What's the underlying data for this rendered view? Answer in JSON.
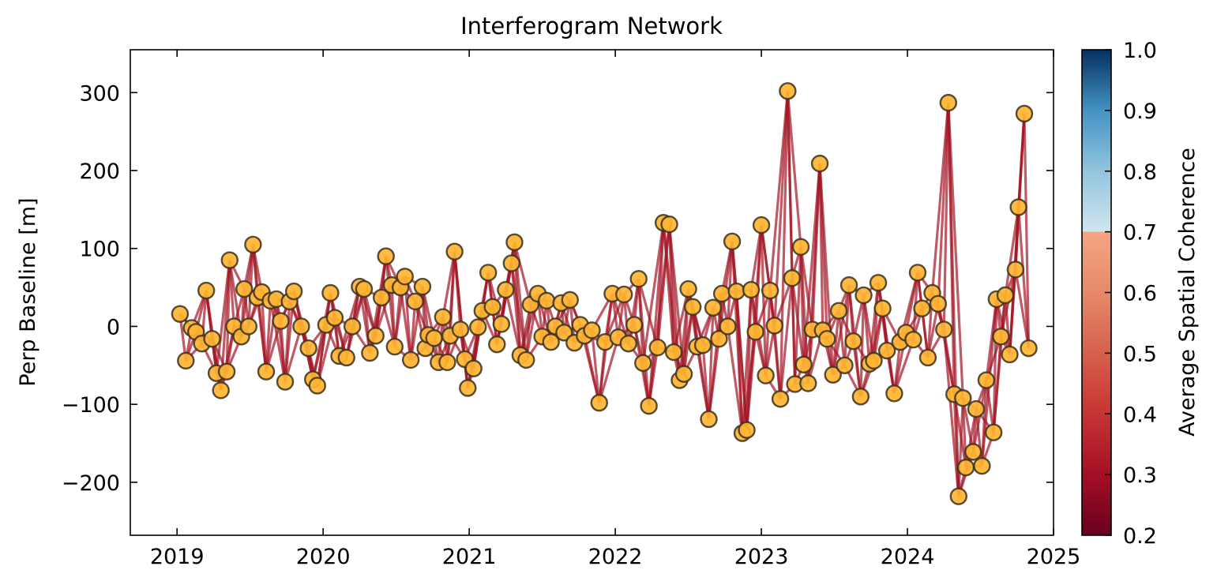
{
  "chart_data": {
    "type": "network",
    "title": "Interferogram Network",
    "ylabel": "Perp Baseline [m]",
    "xlabel": "",
    "xlim": [
      2018.68,
      2024.9
    ],
    "ylim": [
      -268,
      355
    ],
    "xticks": [
      2019,
      2020,
      2021,
      2022,
      2023,
      2024,
      2025
    ],
    "xtick_labels": [
      "2019",
      "2020",
      "2021",
      "2022",
      "2023",
      "2024",
      "2025"
    ],
    "yticks": [
      -200,
      -100,
      0,
      100,
      200,
      300
    ],
    "ytick_labels": [
      "−200",
      "−100",
      "0",
      "100",
      "200",
      "300"
    ],
    "grid": false,
    "colorbar": {
      "label": "Average Spatial Coherence",
      "range": [
        0.2,
        1.0
      ],
      "ticks": [
        0.2,
        0.3,
        0.4,
        0.5,
        0.6,
        0.7,
        0.8,
        0.9,
        1.0
      ],
      "tick_labels": [
        "0.2",
        "0.3",
        "0.4",
        "0.5",
        "0.6",
        "0.7",
        "0.8",
        "0.9",
        "1.0"
      ],
      "colormap": "RdBu",
      "cmap_stops": [
        {
          "v": 0.2,
          "color": "#67001f"
        },
        {
          "v": 0.3,
          "color": "#a50f25"
        },
        {
          "v": 0.4,
          "color": "#c73433"
        },
        {
          "v": 0.5,
          "color": "#d6604d"
        },
        {
          "v": 0.6,
          "color": "#e58a69"
        },
        {
          "v": 0.7,
          "color": "#f4a582"
        },
        {
          "v": 0.7001,
          "color": "#d1e5f0"
        },
        {
          "v": 0.8,
          "color": "#92c5de"
        },
        {
          "v": 0.9,
          "color": "#4393c3"
        },
        {
          "v": 1.0,
          "color": "#053061"
        }
      ]
    },
    "node_color": "#ffb531",
    "node_edge_color": "#3a3020",
    "edge_color": "#a31525",
    "edge_coherence": 0.3,
    "acquisitions": [
      {
        "t": 2019.02,
        "bperp": 16
      },
      {
        "t": 2019.06,
        "bperp": -44
      },
      {
        "t": 2019.1,
        "bperp": -2
      },
      {
        "t": 2019.13,
        "bperp": -7
      },
      {
        "t": 2019.17,
        "bperp": -22
      },
      {
        "t": 2019.2,
        "bperp": 46
      },
      {
        "t": 2019.24,
        "bperp": -16
      },
      {
        "t": 2019.27,
        "bperp": -60
      },
      {
        "t": 2019.3,
        "bperp": -82
      },
      {
        "t": 2019.34,
        "bperp": -58
      },
      {
        "t": 2019.36,
        "bperp": 85
      },
      {
        "t": 2019.39,
        "bperp": 0
      },
      {
        "t": 2019.44,
        "bperp": -13
      },
      {
        "t": 2019.46,
        "bperp": 48
      },
      {
        "t": 2019.49,
        "bperp": 0
      },
      {
        "t": 2019.52,
        "bperp": 105
      },
      {
        "t": 2019.55,
        "bperp": 37
      },
      {
        "t": 2019.58,
        "bperp": 44
      },
      {
        "t": 2019.61,
        "bperp": -58
      },
      {
        "t": 2019.64,
        "bperp": 33
      },
      {
        "t": 2019.68,
        "bperp": 35
      },
      {
        "t": 2019.71,
        "bperp": 7
      },
      {
        "t": 2019.74,
        "bperp": -71
      },
      {
        "t": 2019.77,
        "bperp": 32
      },
      {
        "t": 2019.8,
        "bperp": 45
      },
      {
        "t": 2019.85,
        "bperp": 0
      },
      {
        "t": 2019.9,
        "bperp": -28
      },
      {
        "t": 2019.93,
        "bperp": -68
      },
      {
        "t": 2019.96,
        "bperp": -76
      },
      {
        "t": 2020.02,
        "bperp": 2
      },
      {
        "t": 2020.05,
        "bperp": 43
      },
      {
        "t": 2020.08,
        "bperp": 11
      },
      {
        "t": 2020.11,
        "bperp": -38
      },
      {
        "t": 2020.16,
        "bperp": -40
      },
      {
        "t": 2020.2,
        "bperp": 0
      },
      {
        "t": 2020.25,
        "bperp": 51
      },
      {
        "t": 2020.28,
        "bperp": 48
      },
      {
        "t": 2020.32,
        "bperp": -34
      },
      {
        "t": 2020.36,
        "bperp": -12
      },
      {
        "t": 2020.4,
        "bperp": 37
      },
      {
        "t": 2020.43,
        "bperp": 90
      },
      {
        "t": 2020.47,
        "bperp": 53
      },
      {
        "t": 2020.49,
        "bperp": -26
      },
      {
        "t": 2020.53,
        "bperp": 50
      },
      {
        "t": 2020.56,
        "bperp": 64
      },
      {
        "t": 2020.6,
        "bperp": -43
      },
      {
        "t": 2020.63,
        "bperp": 32
      },
      {
        "t": 2020.68,
        "bperp": 51
      },
      {
        "t": 2020.7,
        "bperp": -28
      },
      {
        "t": 2020.72,
        "bperp": -11
      },
      {
        "t": 2020.76,
        "bperp": -15
      },
      {
        "t": 2020.79,
        "bperp": -46
      },
      {
        "t": 2020.82,
        "bperp": 12
      },
      {
        "t": 2020.85,
        "bperp": -46
      },
      {
        "t": 2020.87,
        "bperp": -12
      },
      {
        "t": 2020.9,
        "bperp": 96
      },
      {
        "t": 2020.94,
        "bperp": -4
      },
      {
        "t": 2020.97,
        "bperp": -42
      },
      {
        "t": 2020.99,
        "bperp": -79
      },
      {
        "t": 2021.03,
        "bperp": -54
      },
      {
        "t": 2021.06,
        "bperp": -1
      },
      {
        "t": 2021.09,
        "bperp": 20
      },
      {
        "t": 2021.13,
        "bperp": 69
      },
      {
        "t": 2021.16,
        "bperp": 25
      },
      {
        "t": 2021.19,
        "bperp": -23
      },
      {
        "t": 2021.22,
        "bperp": 3
      },
      {
        "t": 2021.25,
        "bperp": 47
      },
      {
        "t": 2021.29,
        "bperp": 81
      },
      {
        "t": 2021.31,
        "bperp": 108
      },
      {
        "t": 2021.35,
        "bperp": -37
      },
      {
        "t": 2021.39,
        "bperp": -43
      },
      {
        "t": 2021.42,
        "bperp": 28
      },
      {
        "t": 2021.47,
        "bperp": 42
      },
      {
        "t": 2021.5,
        "bperp": -13
      },
      {
        "t": 2021.53,
        "bperp": 33
      },
      {
        "t": 2021.56,
        "bperp": -20
      },
      {
        "t": 2021.59,
        "bperp": 0
      },
      {
        "t": 2021.63,
        "bperp": 30
      },
      {
        "t": 2021.65,
        "bperp": -8
      },
      {
        "t": 2021.69,
        "bperp": 34
      },
      {
        "t": 2021.72,
        "bperp": -21
      },
      {
        "t": 2021.76,
        "bperp": 2
      },
      {
        "t": 2021.79,
        "bperp": -12
      },
      {
        "t": 2021.84,
        "bperp": -5
      },
      {
        "t": 2021.89,
        "bperp": -98
      },
      {
        "t": 2021.93,
        "bperp": -20
      },
      {
        "t": 2021.98,
        "bperp": 42
      },
      {
        "t": 2022.02,
        "bperp": -14
      },
      {
        "t": 2022.06,
        "bperp": 41
      },
      {
        "t": 2022.09,
        "bperp": -22
      },
      {
        "t": 2022.13,
        "bperp": 2
      },
      {
        "t": 2022.16,
        "bperp": 61
      },
      {
        "t": 2022.19,
        "bperp": -47
      },
      {
        "t": 2022.23,
        "bperp": -102
      },
      {
        "t": 2022.29,
        "bperp": -27
      },
      {
        "t": 2022.33,
        "bperp": 133
      },
      {
        "t": 2022.37,
        "bperp": 131
      },
      {
        "t": 2022.4,
        "bperp": -33
      },
      {
        "t": 2022.44,
        "bperp": -69
      },
      {
        "t": 2022.47,
        "bperp": -61
      },
      {
        "t": 2022.5,
        "bperp": 48
      },
      {
        "t": 2022.53,
        "bperp": 25
      },
      {
        "t": 2022.56,
        "bperp": -26
      },
      {
        "t": 2022.6,
        "bperp": -24
      },
      {
        "t": 2022.64,
        "bperp": -119
      },
      {
        "t": 2022.67,
        "bperp": 24
      },
      {
        "t": 2022.71,
        "bperp": -16
      },
      {
        "t": 2022.73,
        "bperp": 42
      },
      {
        "t": 2022.77,
        "bperp": 0
      },
      {
        "t": 2022.8,
        "bperp": 109
      },
      {
        "t": 2022.83,
        "bperp": 45
      },
      {
        "t": 2022.87,
        "bperp": -137
      },
      {
        "t": 2022.9,
        "bperp": -133
      },
      {
        "t": 2022.93,
        "bperp": 47
      },
      {
        "t": 2022.96,
        "bperp": -7
      },
      {
        "t": 2023.0,
        "bperp": 130
      },
      {
        "t": 2023.03,
        "bperp": -63
      },
      {
        "t": 2023.06,
        "bperp": 46
      },
      {
        "t": 2023.09,
        "bperp": 1
      },
      {
        "t": 2023.13,
        "bperp": -93
      },
      {
        "t": 2023.18,
        "bperp": 302
      },
      {
        "t": 2023.21,
        "bperp": 62
      },
      {
        "t": 2023.23,
        "bperp": -74
      },
      {
        "t": 2023.27,
        "bperp": 102
      },
      {
        "t": 2023.29,
        "bperp": -49
      },
      {
        "t": 2023.32,
        "bperp": -73
      },
      {
        "t": 2023.35,
        "bperp": -4
      },
      {
        "t": 2023.4,
        "bperp": 209
      },
      {
        "t": 2023.42,
        "bperp": -5
      },
      {
        "t": 2023.45,
        "bperp": -16
      },
      {
        "t": 2023.49,
        "bperp": -62
      },
      {
        "t": 2023.53,
        "bperp": 20
      },
      {
        "t": 2023.57,
        "bperp": -50
      },
      {
        "t": 2023.6,
        "bperp": 53
      },
      {
        "t": 2023.63,
        "bperp": -19
      },
      {
        "t": 2023.68,
        "bperp": -90
      },
      {
        "t": 2023.7,
        "bperp": 40
      },
      {
        "t": 2023.74,
        "bperp": -48
      },
      {
        "t": 2023.77,
        "bperp": -44
      },
      {
        "t": 2023.8,
        "bperp": 56
      },
      {
        "t": 2023.83,
        "bperp": 23
      },
      {
        "t": 2023.86,
        "bperp": -31
      },
      {
        "t": 2023.91,
        "bperp": -86
      },
      {
        "t": 2023.95,
        "bperp": -20
      },
      {
        "t": 2023.99,
        "bperp": -8
      },
      {
        "t": 2024.04,
        "bperp": -17
      },
      {
        "t": 2024.07,
        "bperp": 69
      },
      {
        "t": 2024.1,
        "bperp": 23
      },
      {
        "t": 2024.14,
        "bperp": -40
      },
      {
        "t": 2024.17,
        "bperp": 43
      },
      {
        "t": 2024.21,
        "bperp": 29
      },
      {
        "t": 2024.25,
        "bperp": -4
      },
      {
        "t": 2024.28,
        "bperp": 287
      },
      {
        "t": 2024.32,
        "bperp": -87
      },
      {
        "t": 2024.35,
        "bperp": -218
      },
      {
        "t": 2024.38,
        "bperp": -92
      },
      {
        "t": 2024.4,
        "bperp": -181
      },
      {
        "t": 2024.45,
        "bperp": -161
      },
      {
        "t": 2024.47,
        "bperp": -106
      },
      {
        "t": 2024.51,
        "bperp": -179
      },
      {
        "t": 2024.54,
        "bperp": -69
      },
      {
        "t": 2024.59,
        "bperp": -136
      },
      {
        "t": 2024.61,
        "bperp": 35
      },
      {
        "t": 2024.64,
        "bperp": -13
      },
      {
        "t": 2024.67,
        "bperp": 40
      },
      {
        "t": 2024.7,
        "bperp": -36
      },
      {
        "t": 2024.74,
        "bperp": 73
      },
      {
        "t": 2024.76,
        "bperp": 153
      },
      {
        "t": 2024.8,
        "bperp": 273
      },
      {
        "t": 2024.83,
        "bperp": -28
      }
    ]
  }
}
